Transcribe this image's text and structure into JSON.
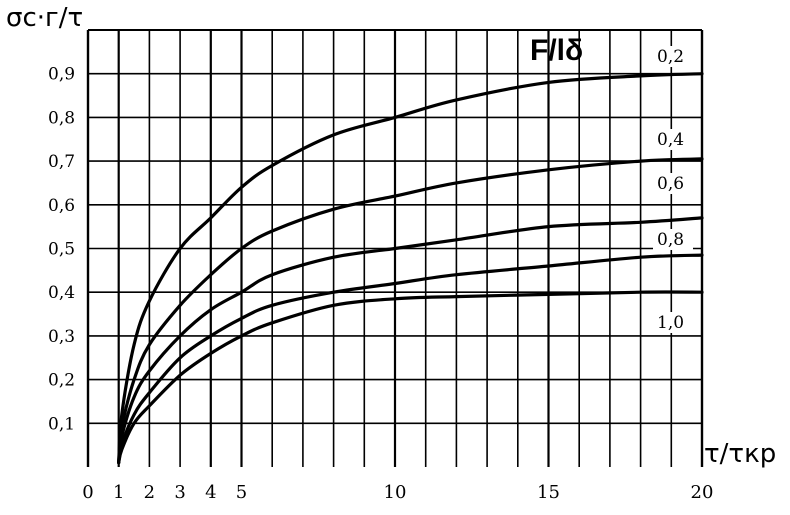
{
  "chart_data": {
    "type": "line",
    "title": "",
    "ylabel": "σс·г/τ",
    "xlabel": "τ/τкр",
    "legend_title": "F/lδ",
    "xlim": [
      0,
      20
    ],
    "ylim": [
      0,
      1.0
    ],
    "grid": true,
    "x_ticks": [
      0,
      1,
      2,
      3,
      4,
      5,
      10,
      15,
      20
    ],
    "y_ticks": [
      0.1,
      0.2,
      0.3,
      0.4,
      0.5,
      0.6,
      0.7,
      0.8,
      0.9
    ],
    "x_tick_labels": [
      "0",
      "1",
      "2",
      "3",
      "4",
      "5",
      "10",
      "15",
      "20"
    ],
    "y_tick_labels": [
      "0,1",
      "0,2",
      "0,3",
      "0,4",
      "0,5",
      "0,6",
      "0,7",
      "0,8",
      "0,9"
    ],
    "series": [
      {
        "name": "0,2",
        "x": [
          1,
          1.1,
          1.5,
          2,
          3,
          4,
          5,
          6,
          8,
          10,
          12,
          15,
          18,
          20
        ],
        "y": [
          0.01,
          0.12,
          0.28,
          0.38,
          0.5,
          0.57,
          0.64,
          0.69,
          0.76,
          0.8,
          0.84,
          0.88,
          0.895,
          0.9
        ]
      },
      {
        "name": "0,4",
        "x": [
          1,
          1.1,
          1.5,
          2,
          3,
          4,
          5,
          6,
          8,
          10,
          12,
          15,
          18,
          20
        ],
        "y": [
          0.01,
          0.09,
          0.2,
          0.28,
          0.37,
          0.44,
          0.5,
          0.54,
          0.59,
          0.62,
          0.65,
          0.68,
          0.7,
          0.705
        ]
      },
      {
        "name": "0,6",
        "x": [
          1,
          1.1,
          1.5,
          2,
          3,
          4,
          5,
          6,
          8,
          10,
          12,
          15,
          18,
          20
        ],
        "y": [
          0.01,
          0.07,
          0.16,
          0.22,
          0.3,
          0.36,
          0.4,
          0.44,
          0.48,
          0.5,
          0.52,
          0.55,
          0.56,
          0.57
        ]
      },
      {
        "name": "0,8",
        "x": [
          1,
          1.1,
          1.5,
          2,
          3,
          4,
          5,
          6,
          8,
          10,
          12,
          15,
          18,
          20
        ],
        "y": [
          0.01,
          0.05,
          0.12,
          0.17,
          0.25,
          0.3,
          0.34,
          0.37,
          0.4,
          0.42,
          0.44,
          0.46,
          0.48,
          0.485
        ]
      },
      {
        "name": "1,0",
        "x": [
          1,
          1.1,
          1.5,
          2,
          3,
          4,
          5,
          6,
          8,
          10,
          12,
          15,
          18,
          20
        ],
        "y": [
          0.01,
          0.04,
          0.1,
          0.14,
          0.21,
          0.26,
          0.3,
          0.33,
          0.37,
          0.385,
          0.39,
          0.395,
          0.4,
          0.4
        ]
      }
    ]
  }
}
